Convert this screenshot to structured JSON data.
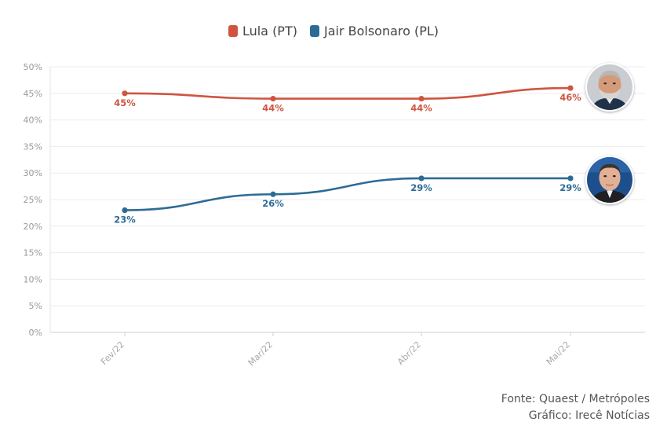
{
  "legend": {
    "items": [
      {
        "label": "Lula (PT)",
        "color": "#cf5541"
      },
      {
        "label": "Jair Bolsonaro (PL)",
        "color": "#2d6b96"
      }
    ]
  },
  "credits": {
    "source": "Fonte: Quaest / Metrópoles",
    "graphic": "Gráfico: Irecê Notícias"
  },
  "chart_data": {
    "type": "line",
    "categories": [
      "Fev/22",
      "Mar/22",
      "Abr/22",
      "Mai/22"
    ],
    "series": [
      {
        "name": "Lula (PT)",
        "values": [
          45,
          44,
          44,
          46
        ],
        "color": "#cf5541",
        "labels": [
          "45%",
          "44%",
          "44%",
          "46%"
        ],
        "avatar": "lula-photo"
      },
      {
        "name": "Jair Bolsonaro (PL)",
        "values": [
          23,
          26,
          29,
          29
        ],
        "color": "#2d6b96",
        "labels": [
          "23%",
          "26%",
          "29%",
          "29%"
        ],
        "avatar": "bolsonaro-photo"
      }
    ],
    "yticks": [
      "0%",
      "5%",
      "10%",
      "15%",
      "20%",
      "25%",
      "30%",
      "35%",
      "40%",
      "45%",
      "50%"
    ],
    "ylim": [
      0,
      50
    ],
    "grid": true,
    "legend_position": "top-center",
    "title": "",
    "xlabel": "",
    "ylabel": ""
  }
}
